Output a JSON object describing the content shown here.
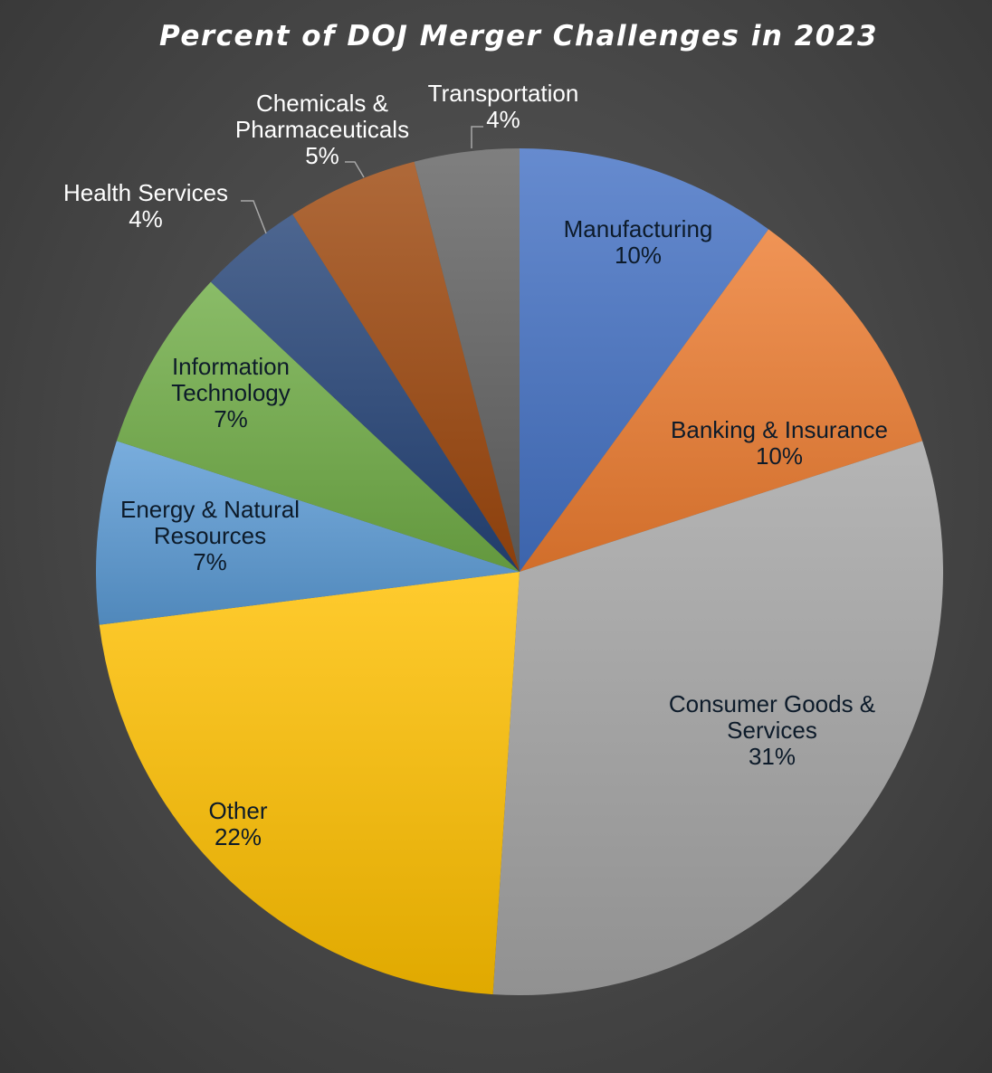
{
  "chart_data": {
    "type": "pie",
    "title": "Percent of DOJ Merger Challenges in 2023",
    "slices": [
      {
        "name": "Manufacturing",
        "value": 10,
        "label": "10%",
        "color": "#4472C4"
      },
      {
        "name": "Banking & Insurance",
        "value": 10,
        "label": "10%",
        "color": "#ED7D31"
      },
      {
        "name": "Consumer Goods & Services",
        "value": 31,
        "label": "31%",
        "color": "#A5A5A5"
      },
      {
        "name": "Other",
        "value": 22,
        "label": "22%",
        "color": "#FFC000"
      },
      {
        "name": "Energy & Natural Resources",
        "value": 7,
        "label": "7%",
        "color": "#5B9BD5"
      },
      {
        "name": "Information Technology",
        "value": 7,
        "label": "7%",
        "color": "#70AD47"
      },
      {
        "name": "Health Services",
        "value": 4,
        "label": "4%",
        "color": "#264478"
      },
      {
        "name": "Chemicals & Pharmaceuticals",
        "value": 5,
        "label": "5%",
        "color": "#9E480E"
      },
      {
        "name": "Transportation",
        "value": 4,
        "label": "4%",
        "color": "#636363"
      }
    ],
    "start_angle": "12 o'clock",
    "direction": "clockwise",
    "legend": "none",
    "label_colors": {
      "inside": "#0d1b2a",
      "outside": "#ffffff"
    }
  }
}
